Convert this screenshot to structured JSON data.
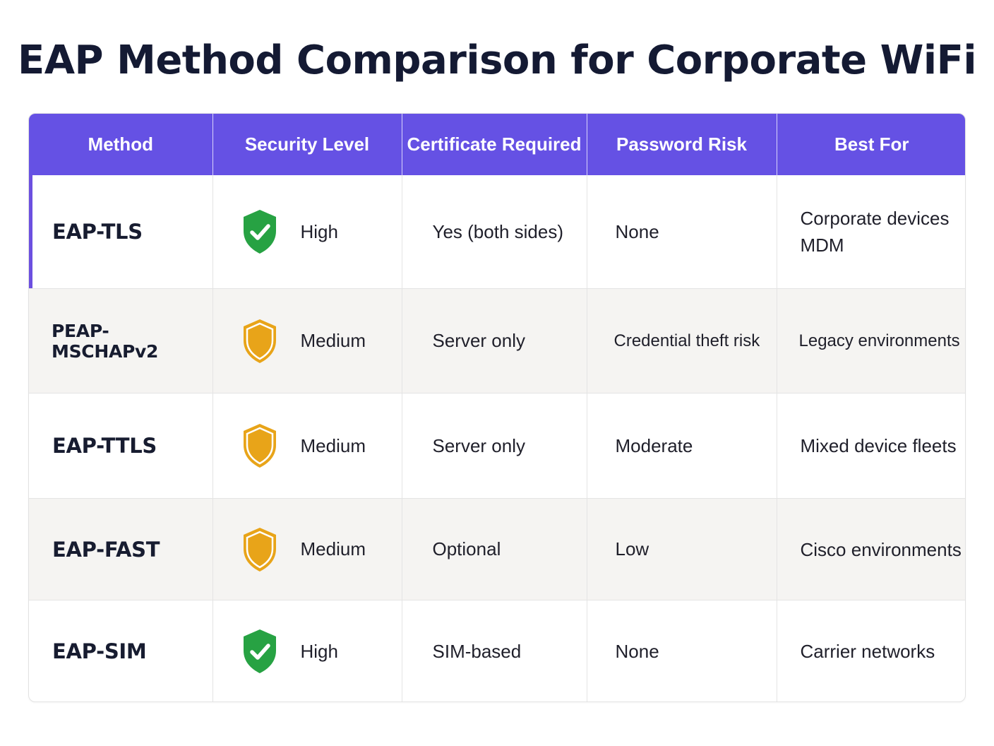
{
  "title": "EAP Method Comparison for Corporate WiFi",
  "colors": {
    "header_bg": "#6551e4",
    "accent": "#6c4fe0",
    "shield_high": "#27a243",
    "shield_medium": "#e8a419"
  },
  "table": {
    "headers": [
      "Method",
      "Security Level",
      "Certificate Required",
      "Password Risk",
      "Best For"
    ],
    "rows": [
      {
        "method": "EAP-TLS",
        "security": "High",
        "security_icon": "shield-check-icon",
        "certificate": "Yes (both sides)",
        "password_risk": "None",
        "best_for": [
          "Corporate devices",
          "MDM"
        ]
      },
      {
        "method": "PEAP-MSCHAPv2",
        "security": "Medium",
        "security_icon": "shield-icon",
        "certificate": "Server only",
        "password_risk": "Credential theft risk",
        "best_for": [
          "Legacy environments"
        ]
      },
      {
        "method": "EAP-TTLS",
        "security": "Medium",
        "security_icon": "shield-icon",
        "certificate": "Server only",
        "password_risk": "Moderate",
        "best_for": [
          "Mixed device fleets"
        ]
      },
      {
        "method": "EAP-FAST",
        "security": "Medium",
        "security_icon": "shield-icon",
        "certificate": "Optional",
        "password_risk": "Low",
        "best_for": [
          "Cisco environments"
        ]
      },
      {
        "method": "EAP-SIM",
        "security": "High",
        "security_icon": "shield-check-icon",
        "certificate": "SIM-based",
        "password_risk": "None",
        "best_for": [
          "Carrier networks"
        ]
      }
    ]
  }
}
